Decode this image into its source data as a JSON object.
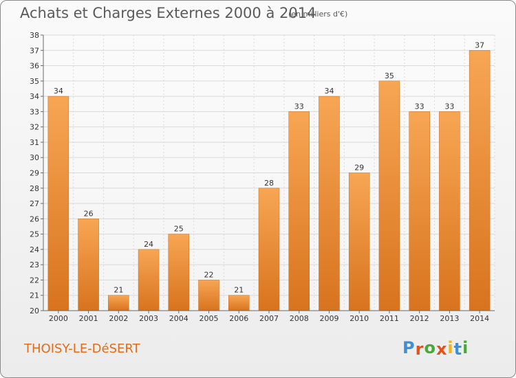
{
  "header": {
    "title": "Achats et Charges Externes 2000 à 2014",
    "unit": "(en milliers d'€)"
  },
  "footer": {
    "place": "THOISY-LE-DéSERT",
    "brand": "Proxiti",
    "brand_letters": [
      "P",
      "r",
      "o",
      "x",
      "i",
      "t",
      "i"
    ],
    "brand_colors": [
      "#3f8fd6",
      "#e8501a",
      "#48a936",
      "#e8501a",
      "#f0b51b",
      "#3f8fd6",
      "#48a936"
    ]
  },
  "colors": {
    "bar_light": "#f7a654",
    "bar_dark": "#d8731e",
    "grid": "#d9d9d9",
    "axis": "#6a6a6a",
    "text": "#333333"
  },
  "chart_data": {
    "type": "bar",
    "title": "Achats et Charges Externes 2000 à 2014",
    "xlabel": "",
    "ylabel": "(en milliers d'€)",
    "ylim": [
      20,
      38
    ],
    "yticks": [
      20,
      21,
      22,
      23,
      24,
      25,
      26,
      27,
      28,
      29,
      30,
      31,
      32,
      33,
      34,
      35,
      36,
      37,
      38
    ],
    "grid": true,
    "categories": [
      "2000",
      "2001",
      "2002",
      "2003",
      "2004",
      "2005",
      "2006",
      "2007",
      "2008",
      "2009",
      "2010",
      "2011",
      "2012",
      "2013",
      "2014"
    ],
    "values": [
      34,
      26,
      21,
      24,
      25,
      22,
      21,
      28,
      33,
      34,
      29,
      35,
      33,
      33,
      37
    ]
  }
}
